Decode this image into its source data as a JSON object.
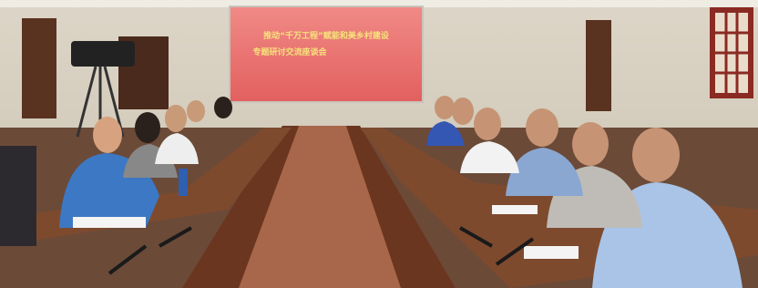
{
  "screen": {
    "line1": "推动“千万工程”赋能和美乡村建设",
    "line2": "专题研讨交流座谈会"
  }
}
